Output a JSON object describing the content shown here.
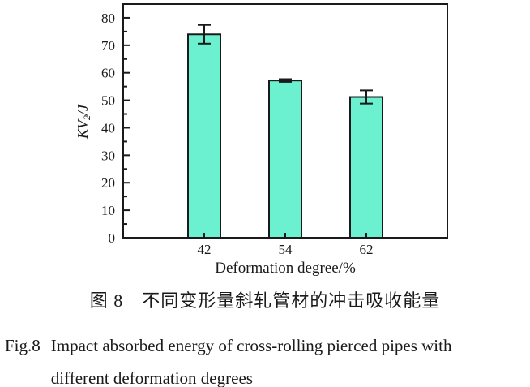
{
  "figure": {
    "caption_cn": "图 8　不同变形量斜轧管材的冲击吸收能量",
    "caption_en": {
      "label": "Fig.8",
      "line1": "Impact absorbed energy of cross-rolling pierced pipes with",
      "line2": "different deformation degrees"
    }
  },
  "chart_data": {
    "type": "bar",
    "title": "",
    "categories": [
      "42",
      "54",
      "62"
    ],
    "values": [
      74,
      57.2,
      51.2
    ],
    "errors": [
      3.4,
      0.5,
      2.4
    ],
    "xlabel": "Deformation degree/%",
    "ylabel": "KV₂/J",
    "ylabel_parts": {
      "main": "KV",
      "sub": "2",
      "unit": "/J"
    },
    "ylim": [
      0,
      85
    ],
    "yticks": [
      0,
      10,
      20,
      30,
      40,
      50,
      60,
      70,
      80
    ],
    "minor_tick_step": 5,
    "grid": false,
    "legend": false,
    "colors": {
      "bar_fill": "#6BF1CF",
      "bar_stroke": "#1a1a1a",
      "axis": "#1a1a1a",
      "text": "#1a1a1a"
    }
  }
}
